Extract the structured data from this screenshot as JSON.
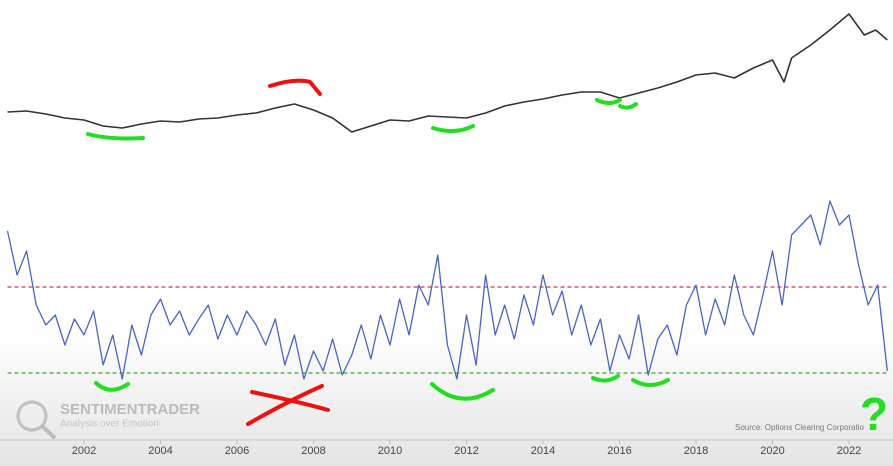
{
  "chart_data": [
    {
      "type": "line",
      "x": [
        2000,
        2000.5,
        2001,
        2001.5,
        2002,
        2002.5,
        2003,
        2003.5,
        2004,
        2004.5,
        2005,
        2005.5,
        2006,
        2006.5,
        2007,
        2007.5,
        2008,
        2008.5,
        2009,
        2009.5,
        2010,
        2010.5,
        2011,
        2011.5,
        2012,
        2012.5,
        2013,
        2013.5,
        2014,
        2014.5,
        2015,
        2015.5,
        2016,
        2016.5,
        2017,
        2017.5,
        2018,
        2018.5,
        2019,
        2019.5,
        2020,
        2020.3,
        2020.5,
        2021,
        2021.5,
        2022,
        2022.4,
        2022.7,
        2023
      ],
      "values": [
        48,
        49,
        46,
        42,
        40,
        34,
        32,
        36,
        39,
        38,
        41,
        42,
        45,
        47,
        52,
        56,
        50,
        42,
        28,
        34,
        40,
        39,
        44,
        43,
        42,
        47,
        54,
        58,
        61,
        65,
        68,
        68,
        62,
        67,
        72,
        78,
        85,
        87,
        82,
        92,
        100,
        78,
        102,
        115,
        130,
        146,
        125,
        130,
        120
      ],
      "color": "#333333",
      "xlim": [
        2000,
        2023
      ],
      "ylim": [
        0,
        160
      ]
    },
    {
      "type": "line",
      "x": [
        2000,
        2000.25,
        2000.5,
        2000.75,
        2001,
        2001.25,
        2001.5,
        2001.75,
        2002,
        2002.25,
        2002.5,
        2002.75,
        2003,
        2003.25,
        2003.5,
        2003.75,
        2004,
        2004.25,
        2004.5,
        2004.75,
        2005,
        2005.25,
        2005.5,
        2005.75,
        2006,
        2006.25,
        2006.5,
        2006.75,
        2007,
        2007.25,
        2007.5,
        2007.75,
        2008,
        2008.25,
        2008.5,
        2008.75,
        2009,
        2009.25,
        2009.5,
        2009.75,
        2010,
        2010.25,
        2010.5,
        2010.75,
        2011,
        2011.25,
        2011.5,
        2011.75,
        2012,
        2012.25,
        2012.5,
        2012.75,
        2013,
        2013.25,
        2013.5,
        2013.75,
        2014,
        2014.25,
        2014.5,
        2014.75,
        2015,
        2015.25,
        2015.5,
        2015.75,
        2016,
        2016.25,
        2016.5,
        2016.75,
        2017,
        2017.25,
        2017.5,
        2017.75,
        2018,
        2018.25,
        2018.5,
        2018.75,
        2019,
        2019.25,
        2019.5,
        2019.75,
        2020,
        2020.25,
        2020.5,
        2020.75,
        2021,
        2021.25,
        2021.5,
        2021.75,
        2022,
        2022.25,
        2022.5,
        2022.75,
        2023
      ],
      "values": [
        82,
        60,
        72,
        45,
        35,
        40,
        25,
        38,
        30,
        42,
        15,
        30,
        8,
        35,
        20,
        40,
        48,
        35,
        42,
        30,
        38,
        45,
        28,
        40,
        30,
        42,
        35,
        25,
        38,
        15,
        30,
        8,
        22,
        12,
        28,
        10,
        20,
        35,
        18,
        40,
        25,
        48,
        30,
        55,
        45,
        70,
        25,
        8,
        40,
        15,
        60,
        30,
        45,
        28,
        50,
        35,
        60,
        40,
        52,
        30,
        45,
        25,
        38,
        12,
        30,
        18,
        40,
        10,
        28,
        35,
        20,
        45,
        55,
        30,
        48,
        35,
        60,
        40,
        30,
        50,
        72,
        45,
        80,
        85,
        90,
        75,
        97,
        85,
        90,
        65,
        45,
        55,
        12
      ],
      "color": "#4a64c0",
      "hlines": [
        {
          "value": 54,
          "color": "#c0395b"
        },
        {
          "value": 11,
          "color": "#3aa830"
        }
      ],
      "xlim": [
        2000,
        2023
      ],
      "ylim": [
        0,
        100
      ],
      "xticks": [
        2002,
        2004,
        2006,
        2008,
        2010,
        2012,
        2014,
        2016,
        2018,
        2020,
        2022
      ],
      "annotations": [
        "SENTIMENTRADER",
        "Analysis over Emotion",
        "Source: Options Clearing Corporatio",
        "?"
      ]
    }
  ]
}
